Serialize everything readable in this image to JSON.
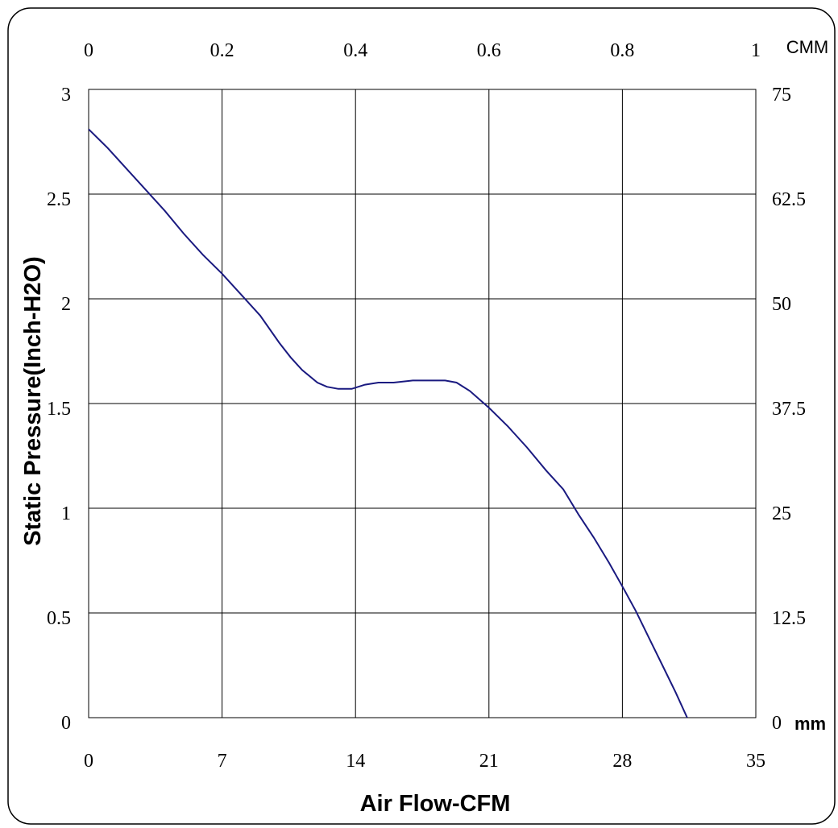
{
  "chart_data": {
    "type": "line",
    "xlabel": "Air Flow-CFM",
    "ylabel": "Static Pressure(Inch-H2O)",
    "xlim": [
      0,
      35
    ],
    "ylim": [
      0,
      3
    ],
    "x_ticks": [
      "0",
      "7",
      "14",
      "21",
      "28",
      "35"
    ],
    "y_ticks": [
      "0",
      "0.5",
      "1",
      "1.5",
      "2",
      "2.5",
      "3"
    ],
    "top_axis": {
      "unit": "CMM",
      "ticks": [
        "0",
        "0.2",
        "0.4",
        "0.6",
        "0.8",
        "1"
      ]
    },
    "right_axis": {
      "unit": "mm",
      "ticks": [
        "0",
        "12.5",
        "25",
        "37.5",
        "50",
        "62.5",
        "75"
      ]
    },
    "grid": true,
    "line_color": "#1a1a80",
    "series": [
      {
        "x": [
          0,
          1,
          2,
          3,
          4,
          5,
          6,
          7,
          8,
          9,
          10,
          10.6,
          11.2,
          12,
          12.5,
          13.1,
          13.8,
          14.5,
          15.2,
          16,
          17,
          18,
          18.7,
          19.3,
          20,
          21,
          22,
          23,
          24,
          24.9,
          25.7,
          26.5,
          27.3,
          28.1,
          28.7,
          29.4,
          30.1,
          30.8,
          31.4
        ],
        "y": [
          2.81,
          2.72,
          2.62,
          2.52,
          2.42,
          2.31,
          2.21,
          2.12,
          2.02,
          1.92,
          1.79,
          1.72,
          1.66,
          1.6,
          1.58,
          1.57,
          1.57,
          1.59,
          1.6,
          1.6,
          1.61,
          1.61,
          1.61,
          1.6,
          1.56,
          1.48,
          1.39,
          1.29,
          1.18,
          1.09,
          0.97,
          0.86,
          0.74,
          0.61,
          0.51,
          0.38,
          0.25,
          0.12,
          0.0
        ]
      }
    ]
  }
}
